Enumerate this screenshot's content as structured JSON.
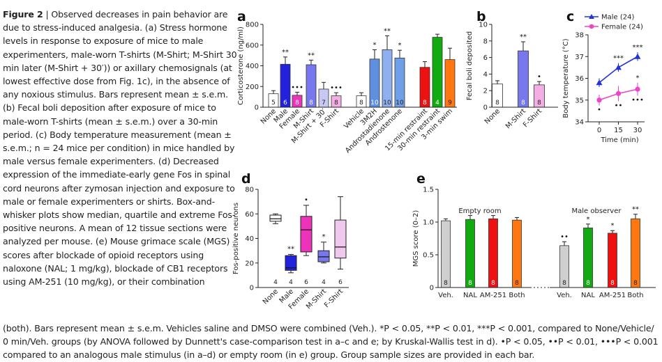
{
  "caption": {
    "figure_label": "Figure 2",
    "title": "Observed decreases in pain behavior are due to stress-induced analgesia.",
    "side_text": " (a) Stress hormone levels in response to exposure of mice to male experimenters, male-worn T-shirts (M-Shirt; M-Shirt 30 min later (M-Shirt + 30′)) or axillary chemosignals (at lowest effective dose from Fig. 1c), in the absence of any noxious stimulus. Bars represent mean ± s.e.m. (b) Fecal boli deposition after exposure of mice to male-worn T-shirts (mean ± s.e.m.) over a 30-min period. (c) Body temperature measurement (mean ± s.e.m.; n = 24 mice per condition) in mice handled by male versus female experimenters. (d) Decreased expression of the immediate-early gene Fos in spinal cord neurons after zymosan injection and exposure to male or female experimenters or shirts. Box-and-whisker plots show median, quartile and extreme Fos-positive neurons. A mean of 12 tissue sections were analyzed per mouse. (e) Mouse grimace scale (MGS) scores after blockade of opioid receptors using naloxone (NAL; 1 mg/kg), blockade of CB1 receptors using AM-251 (10 mg/kg), or their combination",
    "bottom_text": "(both). Bars represent mean ± s.e.m. Vehicles saline and DMSO were combined (Veh.). *P < 0.05, **P < 0.01, ***P < 0.001, compared to None/Vehicle/ 0 min/Veh. groups (by ANOVA followed by Dunnett's case-comparison test in a–c and e; by Kruskal-Wallis test in d). •P < 0.05, ••P < 0.01, •••P < 0.001 compared to an analogous male stimulus (in a–d) or empty room (in e) group. Group sample sizes are provided in each bar."
  },
  "chart_data": [
    {
      "panel": "a",
      "type": "bar",
      "ylabel": "Corticosterone (ng/ml)",
      "ylim": [
        0,
        800
      ],
      "yticks": [
        0,
        200,
        400,
        600,
        800
      ],
      "groups": [
        {
          "label": "None",
          "value": 130,
          "err": 30,
          "n": "5",
          "color": "#ffffff",
          "sig": "",
          "dots": ""
        },
        {
          "label": "Male",
          "value": 415,
          "err": 70,
          "n": "6",
          "color": "#2222dd",
          "sig": "**",
          "dots": ""
        },
        {
          "label": "Female",
          "value": 115,
          "err": 30,
          "n": "8",
          "color": "#ee33bb",
          "sig": "",
          "dots": "•••"
        },
        {
          "label": "M-Shirt",
          "value": 410,
          "err": 45,
          "n": "8",
          "color": "#7777ee",
          "sig": "**",
          "dots": ""
        },
        {
          "label": "M-Shirt + 30′",
          "value": 175,
          "err": 65,
          "n": "7",
          "color": "#c8c8f4",
          "sig": "",
          "dots": ""
        },
        {
          "label": "F-Shirt",
          "value": 110,
          "err": 30,
          "n": "8",
          "color": "#f4aee4",
          "sig": "",
          "dots": "•••"
        },
        {
          "label": "Vehicle",
          "value": 110,
          "err": 30,
          "n": "8",
          "color": "#ffffff",
          "sig": "",
          "dots": ""
        },
        {
          "label": "3M2H",
          "value": 465,
          "err": 90,
          "n": "10",
          "color": "#5f8fdf",
          "sig": "*",
          "dots": ""
        },
        {
          "label": "Androstadienone",
          "value": 555,
          "err": 135,
          "n": "10",
          "color": "#8fb0ee",
          "sig": "**",
          "dots": ""
        },
        {
          "label": "Androstenone",
          "value": 475,
          "err": 75,
          "n": "10",
          "color": "#6f9fe6",
          "sig": "*",
          "dots": ""
        },
        {
          "label": "15-min restraint",
          "value": 385,
          "err": 55,
          "n": "8",
          "color": "#ee1111",
          "sig": "",
          "dots": ""
        },
        {
          "label": "30-min restraint",
          "value": 675,
          "err": 30,
          "n": "4",
          "color": "#11aa11",
          "sig": "",
          "dots": ""
        },
        {
          "label": "3-min swim",
          "value": 460,
          "err": 110,
          "n": "9",
          "color": "#ff7711",
          "sig": "",
          "dots": ""
        }
      ]
    },
    {
      "panel": "b",
      "type": "bar",
      "ylabel": "Fecal boli deposited",
      "ylim": [
        0,
        10
      ],
      "yticks": [
        0,
        2,
        4,
        6,
        8,
        10
      ],
      "groups": [
        {
          "label": "None",
          "value": 2.8,
          "err": 0.4,
          "n": "8",
          "color": "#ffffff",
          "sig": "",
          "dots": ""
        },
        {
          "label": "M-Shirt",
          "value": 6.8,
          "err": 1.1,
          "n": "8",
          "color": "#7777ee",
          "sig": "**",
          "dots": ""
        },
        {
          "label": "F-Shirt",
          "value": 2.7,
          "err": 0.4,
          "n": "8",
          "color": "#f4aee4",
          "sig": "",
          "dots": "•"
        }
      ]
    },
    {
      "panel": "c",
      "type": "line",
      "xlabel": "Time (min)",
      "ylabel": "Body temperature (°C)",
      "ylim": [
        34,
        38
      ],
      "yticks": [
        34,
        35,
        36,
        37,
        38
      ],
      "x": [
        0,
        15,
        30
      ],
      "series": [
        {
          "name": "Male (24)",
          "values": [
            35.8,
            36.5,
            37.0
          ],
          "err": [
            0.2,
            0.2,
            0.2
          ],
          "color": "#2233dd",
          "marker": "triangle",
          "sig": [
            "",
            "***",
            "***"
          ],
          "dots": [
            "",
            "",
            ""
          ]
        },
        {
          "name": "Female (24)",
          "values": [
            35.0,
            35.3,
            35.5
          ],
          "err": [
            0.25,
            0.35,
            0.3
          ],
          "color": "#ee44cc",
          "marker": "circle",
          "sig": [
            "",
            "",
            "*"
          ],
          "dots": [
            "•",
            "••",
            "•••"
          ]
        }
      ]
    },
    {
      "panel": "d",
      "type": "box",
      "ylabel": "Fos-positive neurons",
      "ylim": [
        0,
        80
      ],
      "yticks": [
        0,
        20,
        40,
        60,
        80
      ],
      "groups": [
        {
          "label": "None",
          "min": 52,
          "q1": 54,
          "median": 56,
          "q3": 59,
          "max": 60,
          "n": "4",
          "color": "#ffffff",
          "sig": "",
          "dots": ""
        },
        {
          "label": "Male",
          "min": 12,
          "q1": 14,
          "median": 16,
          "q3": 26,
          "max": 27,
          "n": "4",
          "color": "#2222dd",
          "sig": "**",
          "dots": ""
        },
        {
          "label": "Female",
          "min": 26,
          "q1": 29,
          "median": 47,
          "q3": 58,
          "max": 67,
          "n": "6",
          "color": "#ee33bb",
          "sig": "",
          "dots": "•"
        },
        {
          "label": "M-Shirt",
          "min": 20,
          "q1": 21,
          "median": 25,
          "q3": 30,
          "max": 37,
          "n": "4",
          "color": "#7777ee",
          "sig": "*",
          "dots": ""
        },
        {
          "label": "F-Shirt",
          "min": 15,
          "q1": 24,
          "median": 33,
          "q3": 55,
          "max": 74,
          "n": "6",
          "color": "#f0c8ee",
          "sig": "",
          "dots": ""
        }
      ]
    },
    {
      "panel": "e",
      "type": "bar",
      "ylabel": "MGS score (0–2)",
      "ylim": [
        0,
        1.5
      ],
      "yticks": [
        0,
        0.5,
        1.0,
        1.5
      ],
      "ytick_labels": [
        "0",
        "0.5",
        "1.0",
        "1.5"
      ],
      "group_titles": [
        "Empty room",
        "Male observer"
      ],
      "groups": [
        {
          "label": "Veh.",
          "value": 1.02,
          "err": 0.03,
          "n": "8",
          "color": "#cfcfcf",
          "sig": "",
          "dots": ""
        },
        {
          "label": "NAL",
          "value": 1.04,
          "err": 0.06,
          "n": "8",
          "color": "#11aa11",
          "sig": "",
          "dots": ""
        },
        {
          "label": "AM-251",
          "value": 1.05,
          "err": 0.05,
          "n": "8",
          "color": "#ee1111",
          "sig": "",
          "dots": ""
        },
        {
          "label": "Both",
          "value": 1.03,
          "err": 0.04,
          "n": "8",
          "color": "#ff7711",
          "sig": "",
          "dots": ""
        },
        {
          "label": "Veh.",
          "value": 0.64,
          "err": 0.06,
          "n": "8",
          "color": "#cfcfcf",
          "sig": "",
          "dots": "••"
        },
        {
          "label": "NAL",
          "value": 0.91,
          "err": 0.06,
          "n": "8",
          "color": "#11aa11",
          "sig": "*",
          "dots": ""
        },
        {
          "label": "AM-251",
          "value": 0.83,
          "err": 0.04,
          "n": "8",
          "color": "#ee1111",
          "sig": "*",
          "dots": ""
        },
        {
          "label": "Both",
          "value": 1.05,
          "err": 0.07,
          "n": "8",
          "color": "#ff7711",
          "sig": "**",
          "dots": ""
        }
      ]
    }
  ]
}
